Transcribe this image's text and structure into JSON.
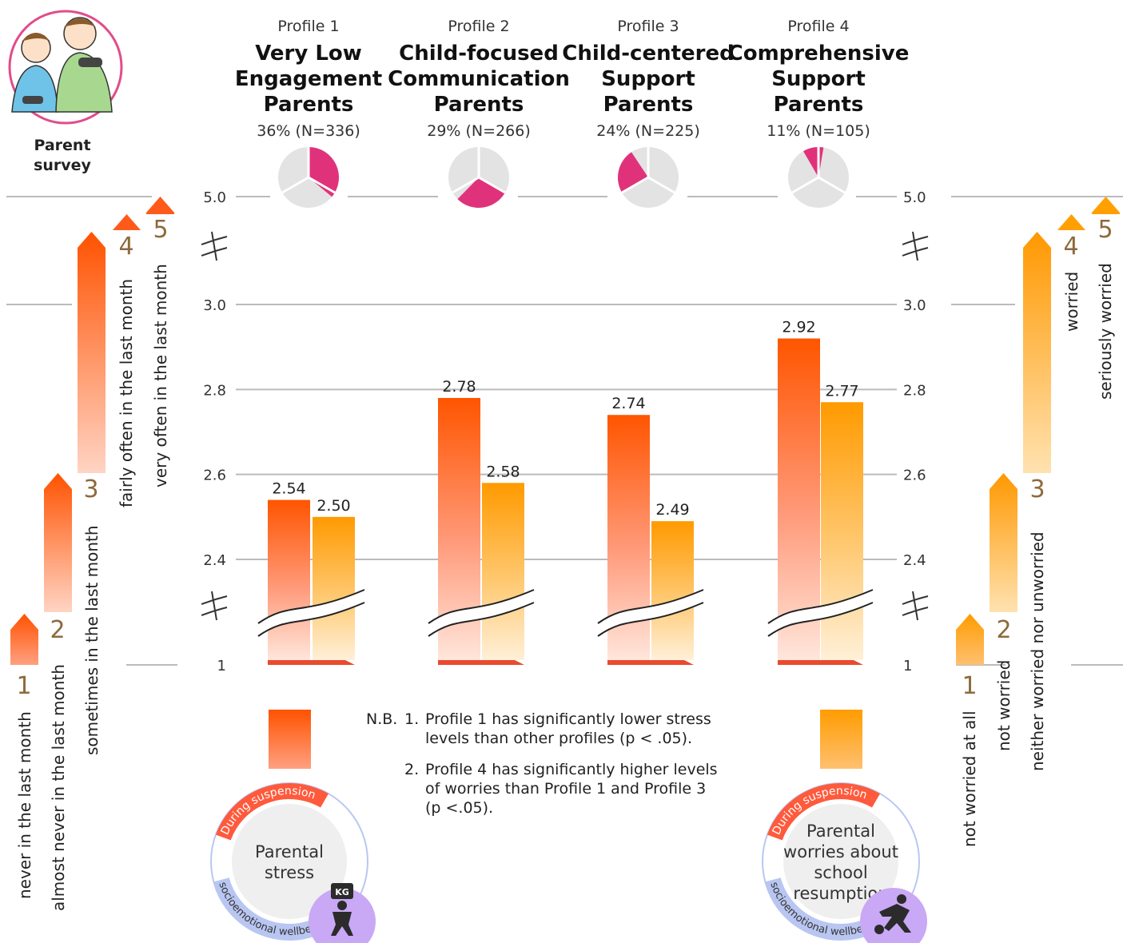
{
  "survey_label": [
    "Parent",
    "survey"
  ],
  "profiles": [
    {
      "tag": "Profile 1",
      "title": [
        "Very Low",
        "Engagement",
        "Parents"
      ],
      "share": "36% (N=336)",
      "pct": 36
    },
    {
      "tag": "Profile 2",
      "title": [
        "Child-focused",
        "Communication",
        "Parents"
      ],
      "share": "29% (N=266)",
      "pct": 29
    },
    {
      "tag": "Profile 3",
      "title": [
        "Child-centered",
        "Support",
        "Parents"
      ],
      "share": "24% (N=225)",
      "pct": 24
    },
    {
      "tag": "Profile 4",
      "title": [
        "Comprehensive",
        "Support",
        "Parents"
      ],
      "share": "11% (N=105)",
      "pct": 11
    }
  ],
  "chart_data": {
    "type": "bar",
    "categories": [
      "Profile 1",
      "Profile 2",
      "Profile 3",
      "Profile 4"
    ],
    "series": [
      {
        "name": "Parental stress",
        "values": [
          2.54,
          2.78,
          2.74,
          2.92
        ],
        "labels": [
          "2.54",
          "2.78",
          "2.74",
          "2.92"
        ]
      },
      {
        "name": "Parental worries about school resumption",
        "values": [
          2.5,
          2.58,
          2.49,
          2.77
        ],
        "labels": [
          "2.50",
          "2.58",
          "2.49",
          "2.77"
        ]
      }
    ],
    "y_ticks": [
      "5.0",
      "3.0",
      "2.8",
      "2.6",
      "2.4",
      "1"
    ],
    "ylim_visible": [
      2.3,
      3.0
    ],
    "axis_breaks": [
      "between 3.0 and 5.0",
      "between 1 and 2.3"
    ],
    "colors": {
      "stress": "#ff5a00",
      "worries": "#ff9f00",
      "pie_highlight": "#e0327a",
      "pie_rest": "#e3e3e3"
    }
  },
  "left_scale": {
    "numbers": [
      "1",
      "2",
      "3",
      "4",
      "5"
    ],
    "labels": [
      "never in the last month",
      "almost never in the last month",
      "sometimes in the last month",
      "fairly often in the last month",
      "very often in the last month"
    ]
  },
  "right_scale": {
    "numbers": [
      "1",
      "2",
      "3",
      "4",
      "5"
    ],
    "labels": [
      "not worried at all",
      "not worried",
      "neither worried nor unworried",
      "worried",
      "seriously worried"
    ]
  },
  "notes": {
    "prefix": "N.B.",
    "items": [
      {
        "num": "1.",
        "lines": [
          "Profile 1 has significantly lower stress",
          "levels than other profiles (p < .05)."
        ]
      },
      {
        "num": "2.",
        "lines": [
          "Profile 4 has significantly higher levels",
          "of worries than Profile 1 and Profile 3",
          "(p <.05)."
        ]
      }
    ]
  },
  "badges": {
    "stress": {
      "title": [
        "Parental",
        "stress"
      ],
      "arc_top": "During suspension",
      "arc_bottom": "socioemotional wellbeing",
      "icon_text": "KG"
    },
    "worries": {
      "title": [
        "Parental",
        "worries about",
        "school",
        "resumption"
      ],
      "arc_top": "During suspension",
      "arc_bottom": "socioemotional wellbeing"
    }
  }
}
